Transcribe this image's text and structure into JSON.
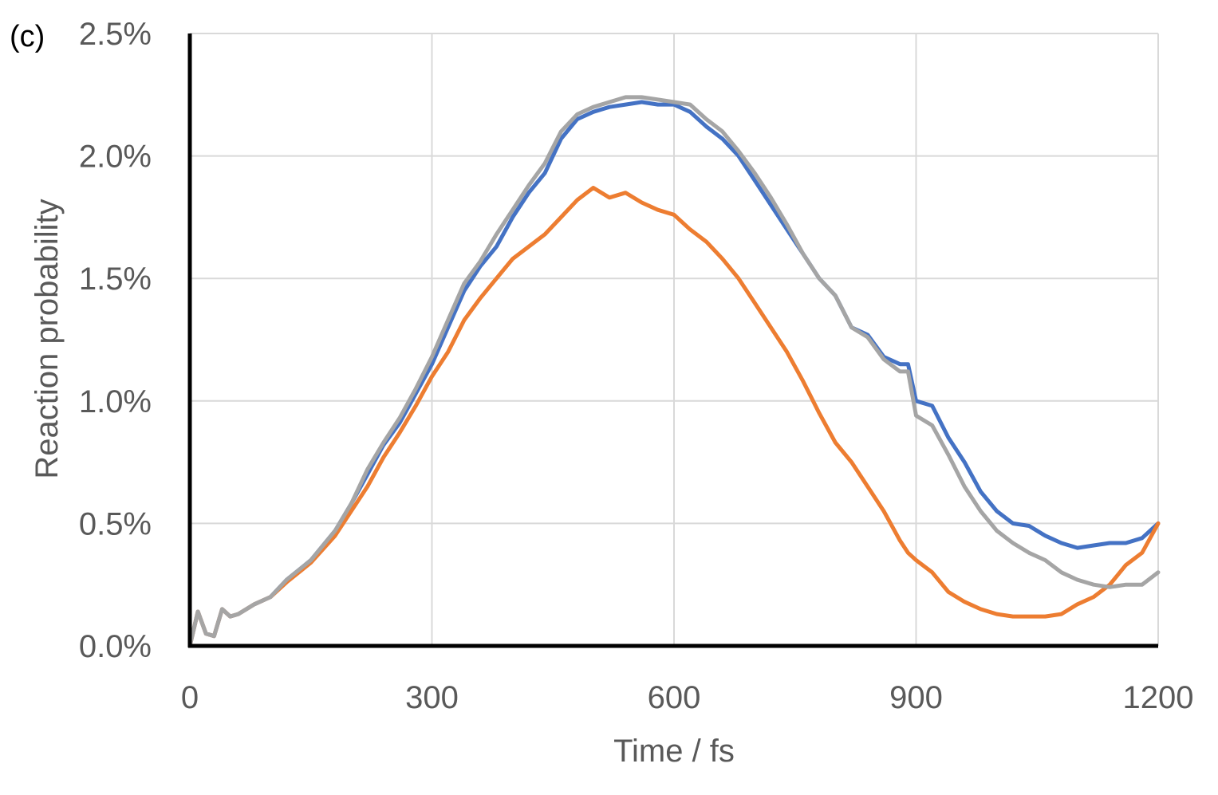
{
  "chart_data": {
    "type": "line",
    "panel_label": "(c)",
    "title": "",
    "xlabel": "Time / fs",
    "ylabel": "Reaction probability",
    "xlim": [
      0,
      1200
    ],
    "ylim": [
      0,
      0.025
    ],
    "x_ticks": [
      0,
      300,
      600,
      900,
      1200
    ],
    "x_tick_labels": [
      "0",
      "300",
      "600",
      "900",
      "1200"
    ],
    "y_ticks": [
      0,
      0.005,
      0.01,
      0.015,
      0.02,
      0.025
    ],
    "y_tick_labels": [
      "0.0%",
      "0.5%",
      "1.0%",
      "1.5%",
      "2.0%",
      "2.5%"
    ],
    "grid": true,
    "legend": "none",
    "x": [
      0,
      10,
      20,
      30,
      40,
      50,
      60,
      80,
      100,
      120,
      150,
      180,
      200,
      220,
      240,
      260,
      280,
      300,
      320,
      340,
      360,
      380,
      400,
      420,
      440,
      460,
      480,
      500,
      520,
      540,
      560,
      580,
      600,
      620,
      640,
      660,
      680,
      700,
      720,
      740,
      760,
      780,
      800,
      820,
      840,
      860,
      880,
      890,
      900,
      920,
      940,
      960,
      980,
      1000,
      1020,
      1040,
      1060,
      1080,
      1100,
      1120,
      1140,
      1160,
      1180,
      1200
    ],
    "series": [
      {
        "color": "#4472C4",
        "values": [
          0.0,
          0.0014,
          0.0005,
          0.0004,
          0.0015,
          0.0012,
          0.0013,
          0.0017,
          0.002,
          0.0027,
          0.0035,
          0.0047,
          0.0058,
          0.007,
          0.0082,
          0.0091,
          0.0103,
          0.0115,
          0.013,
          0.0145,
          0.0155,
          0.0163,
          0.0175,
          0.0185,
          0.0193,
          0.0207,
          0.0215,
          0.0218,
          0.022,
          0.0221,
          0.0222,
          0.0221,
          0.0221,
          0.0218,
          0.0212,
          0.0207,
          0.02,
          0.019,
          0.018,
          0.017,
          0.016,
          0.015,
          0.0143,
          0.013,
          0.0127,
          0.0118,
          0.0115,
          0.0115,
          0.01,
          0.0098,
          0.0085,
          0.0075,
          0.0063,
          0.0055,
          0.005,
          0.0049,
          0.0045,
          0.0042,
          0.004,
          0.0041,
          0.0042,
          0.0042,
          0.0044,
          0.005
        ]
      },
      {
        "color": "#ED7D31",
        "values": [
          0.0,
          0.0014,
          0.0005,
          0.0004,
          0.0015,
          0.0012,
          0.0013,
          0.0017,
          0.002,
          0.0026,
          0.0034,
          0.0045,
          0.0055,
          0.0065,
          0.0077,
          0.0087,
          0.0098,
          0.011,
          0.012,
          0.0133,
          0.0142,
          0.015,
          0.0158,
          0.0163,
          0.0168,
          0.0175,
          0.0182,
          0.0187,
          0.0183,
          0.0185,
          0.0181,
          0.0178,
          0.0176,
          0.017,
          0.0165,
          0.0158,
          0.015,
          0.014,
          0.013,
          0.012,
          0.0108,
          0.0095,
          0.0083,
          0.0075,
          0.0065,
          0.0055,
          0.0043,
          0.0038,
          0.0035,
          0.003,
          0.0022,
          0.0018,
          0.0015,
          0.0013,
          0.0012,
          0.0012,
          0.0012,
          0.0013,
          0.0017,
          0.002,
          0.0025,
          0.0033,
          0.0038,
          0.005
        ]
      },
      {
        "color": "#A5A5A5",
        "values": [
          0.0,
          0.0014,
          0.0005,
          0.0004,
          0.0015,
          0.0012,
          0.0013,
          0.0017,
          0.002,
          0.0027,
          0.0035,
          0.0047,
          0.0058,
          0.0072,
          0.0083,
          0.0093,
          0.0105,
          0.0118,
          0.0133,
          0.0148,
          0.0157,
          0.0168,
          0.0178,
          0.0188,
          0.0197,
          0.021,
          0.0217,
          0.022,
          0.0222,
          0.0224,
          0.0224,
          0.0223,
          0.0222,
          0.0221,
          0.0215,
          0.021,
          0.0202,
          0.0193,
          0.0183,
          0.0172,
          0.016,
          0.015,
          0.0143,
          0.013,
          0.0126,
          0.0117,
          0.0112,
          0.0112,
          0.0094,
          0.009,
          0.0078,
          0.0065,
          0.0055,
          0.0047,
          0.0042,
          0.0038,
          0.0035,
          0.003,
          0.0027,
          0.0025,
          0.0024,
          0.0025,
          0.0025,
          0.003
        ]
      }
    ]
  }
}
